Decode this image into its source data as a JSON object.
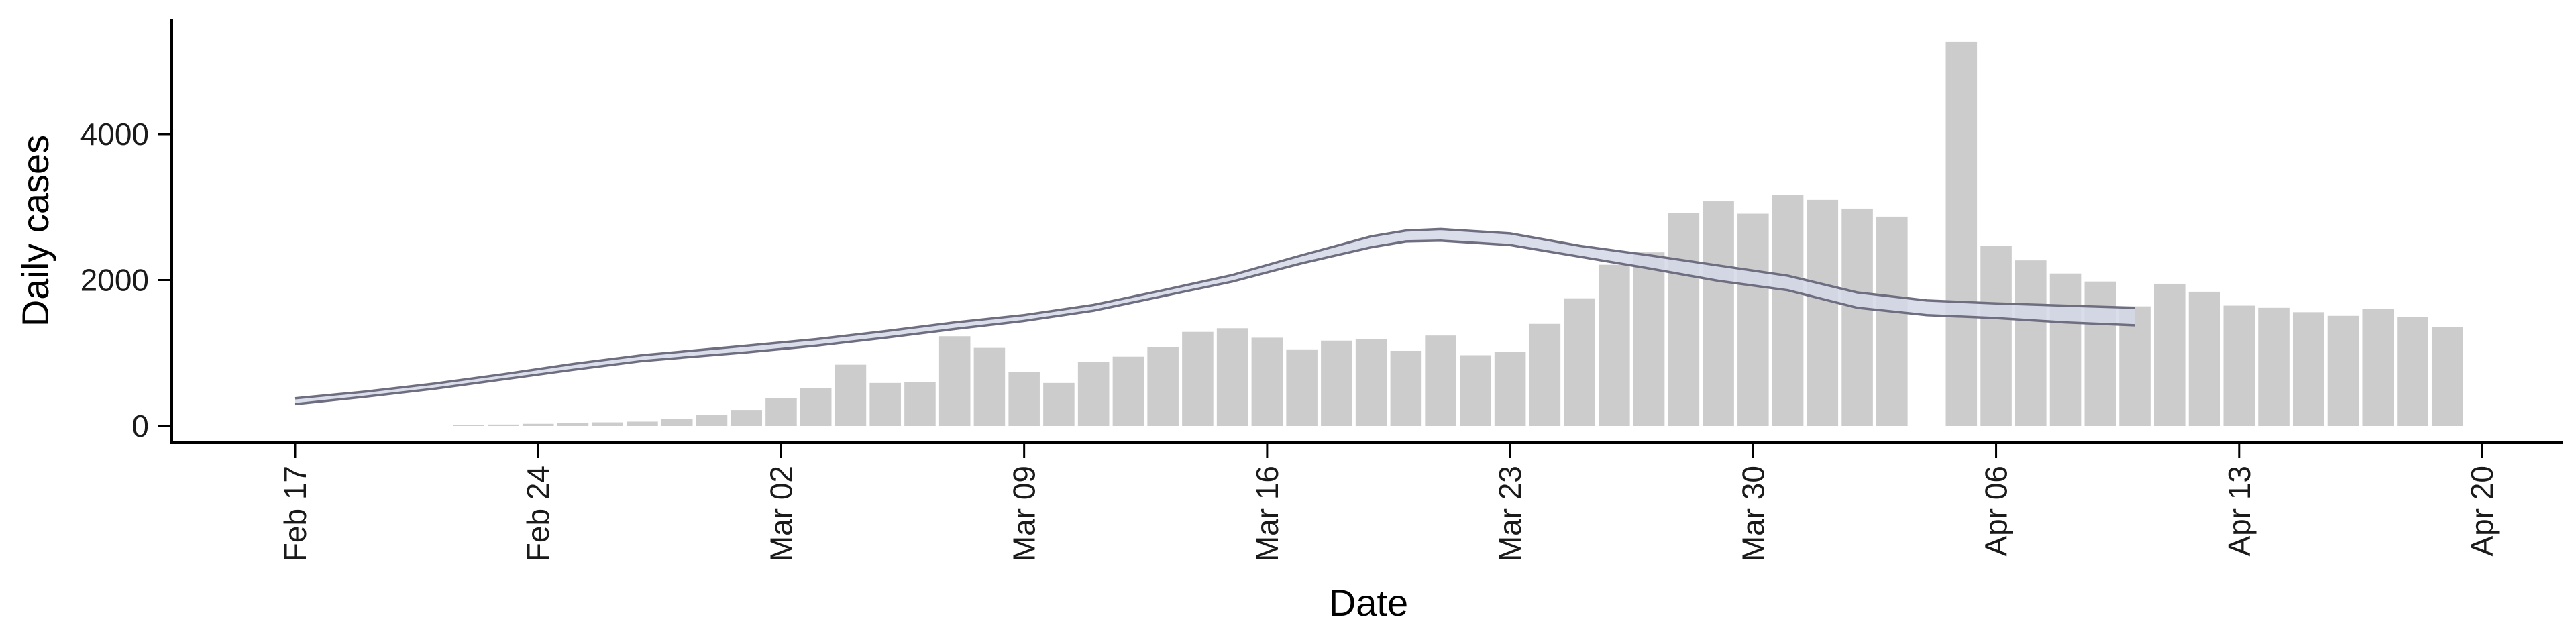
{
  "chart_data": {
    "type": "bar",
    "title": "",
    "xlabel": "Date",
    "ylabel": "Daily cases",
    "x_start": "2020-02-17",
    "x_end": "2020-04-20",
    "ylim": [
      -250,
      5600
    ],
    "grid": false,
    "legend": "none",
    "x_ticks": [
      "Feb 17",
      "Feb 24",
      "Mar 02",
      "Mar 09",
      "Mar 16",
      "Mar 23",
      "Mar 30",
      "Apr 06",
      "Apr 13",
      "Apr 20"
    ],
    "y_ticks": [
      0,
      2000,
      4000
    ],
    "bars": {
      "color": "#cccccc",
      "dates": [
        "2020-02-22",
        "2020-02-23",
        "2020-02-24",
        "2020-02-25",
        "2020-02-26",
        "2020-02-27",
        "2020-02-28",
        "2020-02-29",
        "2020-03-01",
        "2020-03-02",
        "2020-03-03",
        "2020-03-04",
        "2020-03-05",
        "2020-03-06",
        "2020-03-07",
        "2020-03-08",
        "2020-03-09",
        "2020-03-10",
        "2020-03-11",
        "2020-03-12",
        "2020-03-13",
        "2020-03-14",
        "2020-03-15",
        "2020-03-16",
        "2020-03-17",
        "2020-03-18",
        "2020-03-19",
        "2020-03-20",
        "2020-03-21",
        "2020-03-22",
        "2020-03-23",
        "2020-03-24",
        "2020-03-25",
        "2020-03-26",
        "2020-03-27",
        "2020-03-28",
        "2020-03-29",
        "2020-03-30",
        "2020-03-31",
        "2020-04-01",
        "2020-04-02",
        "2020-04-03",
        "2020-04-05",
        "2020-04-06",
        "2020-04-07",
        "2020-04-08",
        "2020-04-09",
        "2020-04-10",
        "2020-04-11",
        "2020-04-12",
        "2020-04-13",
        "2020-04-14",
        "2020-04-15",
        "2020-04-16",
        "2020-04-17",
        "2020-04-18",
        "2020-04-19"
      ],
      "values": [
        10,
        20,
        30,
        40,
        50,
        60,
        100,
        150,
        220,
        380,
        520,
        840,
        590,
        600,
        1230,
        1070,
        740,
        590,
        880,
        950,
        1080,
        1290,
        1340,
        1210,
        1050,
        1170,
        1190,
        1030,
        1240,
        970,
        1020,
        1400,
        1750,
        2210,
        2380,
        2920,
        3080,
        2910,
        3170,
        3100,
        2980,
        2870,
        5270,
        2470,
        2270,
        2090,
        1980,
        1640,
        1950,
        1840,
        1650,
        1620,
        1560,
        1510,
        1600,
        1490,
        1360
      ]
    },
    "series": [
      {
        "color": "#6e6e80",
        "fill": "#d4d8e8",
        "dates": [
          "2020-02-17",
          "2020-02-19",
          "2020-02-21",
          "2020-02-23",
          "2020-02-25",
          "2020-02-27",
          "2020-03-01",
          "2020-03-03",
          "2020-03-05",
          "2020-03-07",
          "2020-03-09",
          "2020-03-11",
          "2020-03-13",
          "2020-03-15",
          "2020-03-17",
          "2020-03-19",
          "2020-03-20",
          "2020-03-21",
          "2020-03-23",
          "2020-03-25",
          "2020-03-27",
          "2020-03-29",
          "2020-03-31",
          "2020-04-02",
          "2020-04-04",
          "2020-04-06",
          "2020-04-08",
          "2020-04-10"
        ],
        "upper": [
          380,
          470,
          580,
          710,
          850,
          970,
          1100,
          1190,
          1300,
          1420,
          1520,
          1660,
          1860,
          2070,
          2340,
          2600,
          2680,
          2700,
          2640,
          2470,
          2340,
          2200,
          2060,
          1830,
          1720,
          1680,
          1650,
          1620
        ],
        "lower": [
          300,
          400,
          510,
          640,
          770,
          890,
          1010,
          1100,
          1210,
          1330,
          1440,
          1580,
          1780,
          1980,
          2230,
          2450,
          2530,
          2540,
          2480,
          2320,
          2160,
          1990,
          1860,
          1620,
          1520,
          1480,
          1420,
          1380
        ]
      }
    ]
  }
}
